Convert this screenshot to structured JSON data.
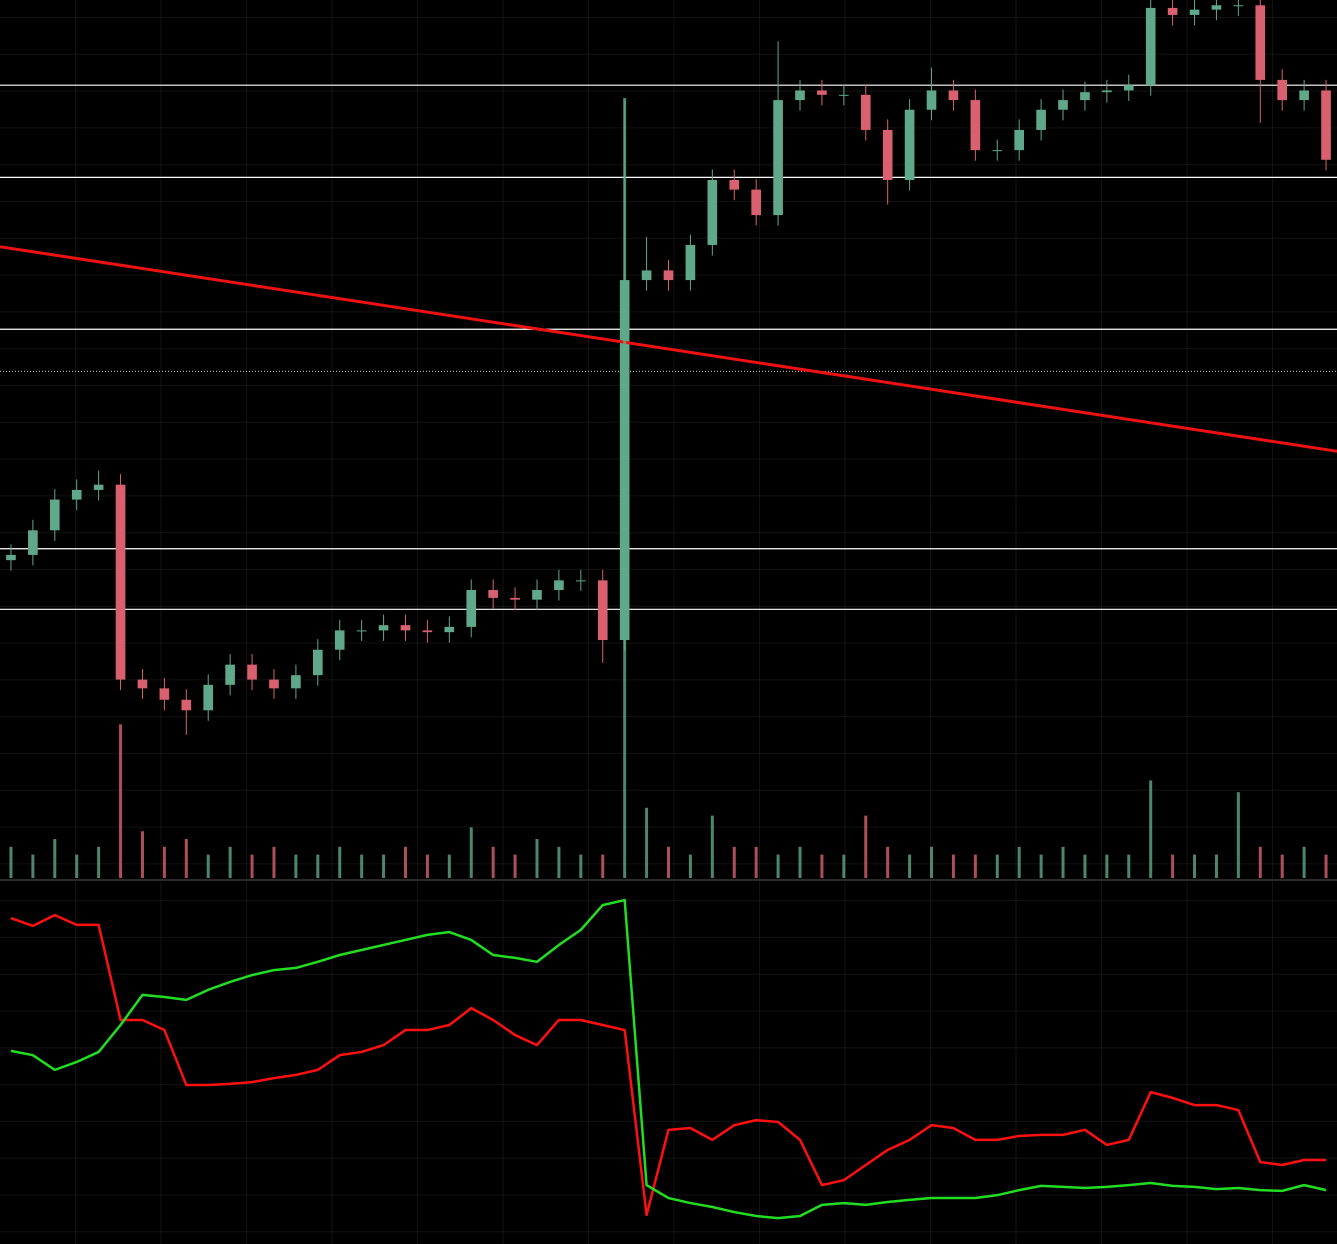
{
  "chart_data": [
    {
      "type": "candlestick",
      "open": [
        36.2,
        36.8,
        39.6,
        43.1,
        44.2,
        44.8,
        22.6,
        21.6,
        20.3,
        19.1,
        22.0,
        24.3,
        22.6,
        21.6,
        23.1,
        26.0,
        28.2,
        28.2,
        28.8,
        28.2,
        28.0,
        28.6,
        32.8,
        31.9,
        31.7,
        32.8,
        33.9,
        33.9,
        27.1,
        68.1,
        69.2,
        68.1,
        72.1,
        79.5,
        78.4,
        75.5,
        88.6,
        89.7,
        89.2,
        89.2,
        85.2,
        79.5,
        87.5,
        89.7,
        88.6,
        82.9,
        82.9,
        85.2,
        87.5,
        88.6,
        89.5,
        89.7,
        90.3,
        99.1,
        98.3,
        98.9,
        99.4,
        99.4,
        90.9,
        88.6,
        89.7
      ],
      "high": [
        38.0,
        40.8,
        44.3,
        45.4,
        46.4,
        46.0,
        23.8,
        22.8,
        21.5,
        23.2,
        25.5,
        25.5,
        23.8,
        24.3,
        27.2,
        29.4,
        29.4,
        30.0,
        30.0,
        29.4,
        29.8,
        34.0,
        34.0,
        33.1,
        34.0,
        35.1,
        35.1,
        35.1,
        88.6,
        73.0,
        70.4,
        73.3,
        80.7,
        80.7,
        79.6,
        95.3,
        90.9,
        90.9,
        90.4,
        90.4,
        86.4,
        88.7,
        92.3,
        90.9,
        89.8,
        84.1,
        86.4,
        88.7,
        89.8,
        90.7,
        90.9,
        91.5,
        100,
        100,
        100,
        100,
        100,
        100,
        92.1,
        90.9,
        90.9
      ],
      "low": [
        35.0,
        35.6,
        38.4,
        41.9,
        43.0,
        21.4,
        20.4,
        19.1,
        16.3,
        17.9,
        20.8,
        21.4,
        20.4,
        20.4,
        21.9,
        24.8,
        27.0,
        27.0,
        27.0,
        26.8,
        26.8,
        27.4,
        30.7,
        30.5,
        30.5,
        31.6,
        32.7,
        24.5,
        25.9,
        66.9,
        66.9,
        66.9,
        70.9,
        77.2,
        74.3,
        74.3,
        87.4,
        88.0,
        88.0,
        84.0,
        76.7,
        78.3,
        86.3,
        87.4,
        81.7,
        81.7,
        81.7,
        84.0,
        86.3,
        87.4,
        88.3,
        88.5,
        89.1,
        97.1,
        97.1,
        97.7,
        98.2,
        86.0,
        87.4,
        87.4,
        80.6
      ],
      "close": [
        36.8,
        39.6,
        43.1,
        44.2,
        44.8,
        22.6,
        21.6,
        20.3,
        19.1,
        22.0,
        24.3,
        22.6,
        21.6,
        23.1,
        26.0,
        28.2,
        28.2,
        28.8,
        28.2,
        28.0,
        28.6,
        32.8,
        31.9,
        31.7,
        32.8,
        33.9,
        33.9,
        27.1,
        68.1,
        69.2,
        68.1,
        72.1,
        79.5,
        78.4,
        75.5,
        88.6,
        89.7,
        89.2,
        89.2,
        85.2,
        79.5,
        87.5,
        89.7,
        88.6,
        82.9,
        82.9,
        85.2,
        87.5,
        88.6,
        89.5,
        89.7,
        90.3,
        99.1,
        98.3,
        98.9,
        99.4,
        99.4,
        90.9,
        88.6,
        89.7,
        81.8
      ],
      "ylim": [
        0,
        100
      ],
      "up_color": "#5fa88a",
      "down_color": "#d9616f",
      "levels": [
        90.3,
        79.8,
        62.5,
        37.5,
        30.6
      ],
      "level_color": "#ffffff",
      "dotted_levels": [
        57.7
      ],
      "trendline": [
        71.9,
        48.6
      ],
      "trendline_color": "#ee1111"
    },
    {
      "type": "bar",
      "values": [
        4,
        3,
        5,
        3,
        4,
        19.7,
        6,
        4,
        5,
        3,
        4,
        3,
        4,
        3,
        3,
        4,
        3,
        3,
        4,
        3,
        3,
        6.5,
        4,
        3,
        5,
        4,
        3,
        3,
        100,
        9,
        4,
        3,
        8,
        4,
        4,
        3,
        4,
        3,
        3,
        8,
        4,
        3,
        4,
        3,
        3,
        3,
        4,
        3,
        4,
        3,
        3,
        3,
        12.5,
        3,
        3,
        3,
        11,
        4,
        3,
        4,
        3
      ],
      "ylim": [
        0,
        100
      ]
    },
    {
      "type": "line",
      "series": [
        {
          "color": "#ff1010",
          "values": [
            90.8,
            88.6,
            91.6,
            88.9,
            88.9,
            62.4,
            62.4,
            59.6,
            44.3,
            44.3,
            44.6,
            45.1,
            46.2,
            47.1,
            48.5,
            52.6,
            53.5,
            55.4,
            59.6,
            59.6,
            61.0,
            65.7,
            62.4,
            58.2,
            55.4,
            62.4,
            62.4,
            61.0,
            59.6,
            8.1,
            31.8,
            32.3,
            29.0,
            33.1,
            34.5,
            34.0,
            29.0,
            16.4,
            17.8,
            22.0,
            26.2,
            29.0,
            33.1,
            32.3,
            29.0,
            29.0,
            30.1,
            30.4,
            30.4,
            31.8,
            27.6,
            29.0,
            42.3,
            40.7,
            38.7,
            38.7,
            37.3,
            22.8,
            22.0,
            23.4,
            23.4
          ]
        },
        {
          "color": "#22dd22",
          "values": [
            53.8,
            52.6,
            48.5,
            50.7,
            53.5,
            61.0,
            69.4,
            68.8,
            68.0,
            70.8,
            73.0,
            74.9,
            76.3,
            76.9,
            78.6,
            80.5,
            81.9,
            83.3,
            84.7,
            86.1,
            86.9,
            84.7,
            80.5,
            79.7,
            78.6,
            83.3,
            87.5,
            94.4,
            95.8,
            16.4,
            12.8,
            11.4,
            10.3,
            8.9,
            7.8,
            7.2,
            7.8,
            10.9,
            11.4,
            10.9,
            11.7,
            12.3,
            12.8,
            12.8,
            12.8,
            13.6,
            15.0,
            16.2,
            15.9,
            15.6,
            15.9,
            16.4,
            17.0,
            16.2,
            15.9,
            15.3,
            15.6,
            15.0,
            14.8,
            16.4,
            15.0
          ]
        }
      ],
      "ylim": [
        0,
        100
      ]
    }
  ]
}
